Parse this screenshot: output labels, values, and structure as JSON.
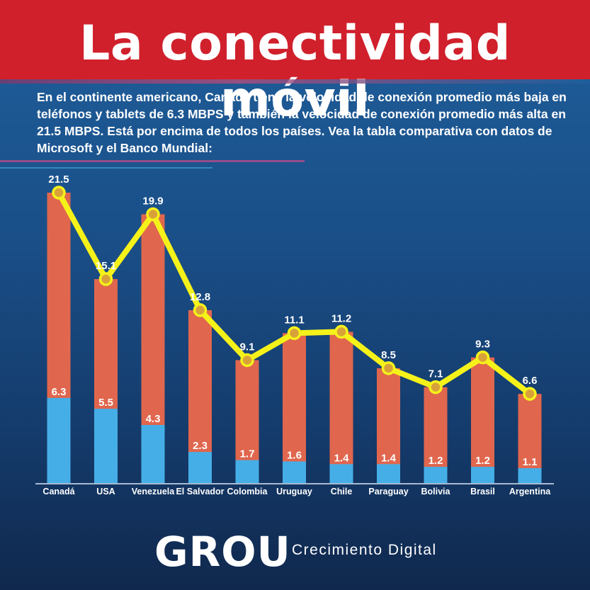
{
  "header": {
    "title": "La conectividad móvil"
  },
  "intro": {
    "text": "En el continente americano, Canadá tiene la velocidad de conexión promedio más baja en teléfonos y tablets de 6.3 MBPS y también la velocidad de conexión promedio más alta en 21.5 MBPS. Está por encima de todos los países. Vea la tabla comparativa con datos de Microsoft y el Banco Mundial:"
  },
  "colors": {
    "header_red": "#d0202c",
    "bar_high": "#e0664d",
    "bar_low": "#46aee6",
    "line": "#f5f21a",
    "background": "#1a4f88"
  },
  "chart_data": {
    "type": "bar",
    "categories": [
      "Canadá",
      "USA",
      "Venezuela",
      "El Salvador",
      "Colombia",
      "Uruguay",
      "Chile",
      "Paraguay",
      "Bolivia",
      "Brasil",
      "Argentina"
    ],
    "series": [
      {
        "values": [
          6.3,
          5.5,
          4.3,
          2.3,
          1.7,
          1.6,
          1.4,
          1.4,
          1.2,
          1.2,
          1.1
        ]
      },
      {
        "values": [
          21.5,
          15.1,
          19.9,
          12.8,
          9.1,
          11.1,
          11.2,
          8.5,
          7.1,
          9.3,
          6.6
        ]
      }
    ],
    "line_series_values": [
      21.5,
      15.1,
      19.9,
      12.8,
      9.1,
      11.1,
      11.2,
      8.5,
      7.1,
      9.3,
      6.6
    ],
    "ylim": [
      0,
      22
    ],
    "grid": false,
    "legend": "none"
  },
  "footer": {
    "logo": "GROU",
    "tagline": "Crecimiento Digital"
  }
}
